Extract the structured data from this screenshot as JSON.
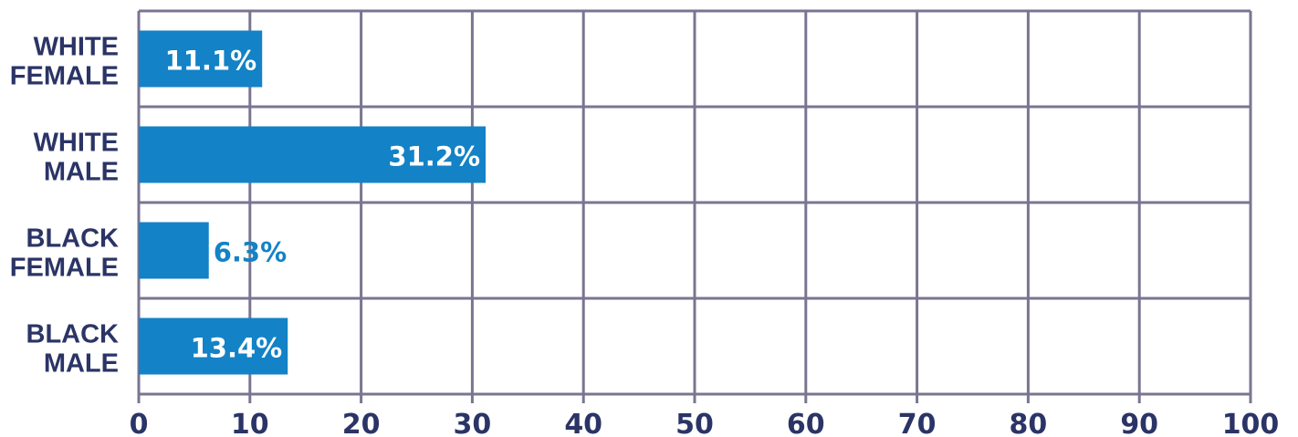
{
  "chart_data": {
    "type": "bar",
    "orientation": "horizontal",
    "categories": [
      [
        "WHITE",
        "FEMALE"
      ],
      [
        "WHITE",
        "MALE"
      ],
      [
        "BLACK",
        "FEMALE"
      ],
      [
        "BLACK",
        "MALE"
      ]
    ],
    "values": [
      11.1,
      31.2,
      6.3,
      13.4
    ],
    "data_labels": [
      "11.1%",
      "31.2%",
      "6.3%",
      "13.4%"
    ],
    "xlim": [
      0,
      100
    ],
    "xticks": [
      0,
      10,
      20,
      30,
      40,
      50,
      60,
      70,
      80,
      90,
      100
    ],
    "grid": true,
    "title": "",
    "xlabel": "",
    "ylabel": ""
  },
  "colors": {
    "bar": "#1382c6",
    "grid": "#7b7491",
    "label_text": "#2b3466",
    "inside_label": "#ffffff",
    "outside_label": "#1382c6"
  }
}
